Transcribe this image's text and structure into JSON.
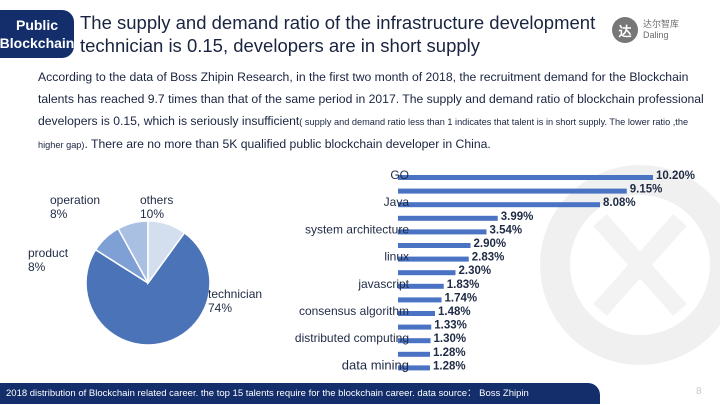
{
  "tag": {
    "line1": "Public",
    "line2": "Blockchain"
  },
  "title": "The supply and demand ratio of the infrastructure development technician is 0.15, developers are in short supply",
  "logo": {
    "mark": "达",
    "text1": "达尔智库",
    "text2": "Daling"
  },
  "body": {
    "part1": "According to the data of Boss Zhipin Research, in the first two month of 2018, the recruitment demand for the Blockchain talents has reached 9.7 times than that of the same period in 2017. The supply and demand ratio of blockchain professional developers is 0.15, which is seriously insufficient",
    "part2": "( supply and demand ratio less than 1 indicates that talent is in short supply. The lower ratio ,the higher gap)",
    "part3": ". There are no more than 5K qualified public blockchain developer in China."
  },
  "footer": "2018 distribution of Blockchain related career. the top 15 talents require for the blockchain career. data source： Boss Zhipin",
  "page_number": "8",
  "colors": {
    "navy": "#132e6b",
    "bar": "#4a73c4",
    "pie_dark": "#4a73b8",
    "pie_mid": "#7fa0d4",
    "pie_light": "#a9c0e3",
    "pie_pale": "#d3deef"
  },
  "chart_data": [
    {
      "type": "pie",
      "slices": [
        {
          "label": "technician",
          "value": 74,
          "value_label": "74%"
        },
        {
          "label": "product",
          "value": 8,
          "value_label": "8%"
        },
        {
          "label": "operation",
          "value": 8,
          "value_label": "8%"
        },
        {
          "label": "others",
          "value": 10,
          "value_label": "10%"
        }
      ]
    },
    {
      "type": "bar",
      "orientation": "horizontal",
      "categories": [
        "GO",
        "",
        "Java",
        "",
        "system architecture",
        "",
        "linux",
        "",
        "javascript",
        "",
        "consensus algorithm",
        "",
        "distributed computing",
        "",
        "data mining"
      ],
      "values": [
        10.2,
        9.15,
        8.08,
        3.99,
        3.54,
        2.9,
        2.83,
        2.3,
        1.83,
        1.74,
        1.48,
        1.33,
        1.3,
        1.28,
        1.28
      ],
      "value_labels": [
        "10.20%",
        "9.15%",
        "8.08%",
        "3.99%",
        "3.54%",
        "2.90%",
        "2.83%",
        "2.30%",
        "1.83%",
        "1.74%",
        "1.48%",
        "1.33%",
        "1.30%",
        "1.28%",
        "1.28%"
      ],
      "xlim": [
        0,
        10.2
      ]
    }
  ]
}
